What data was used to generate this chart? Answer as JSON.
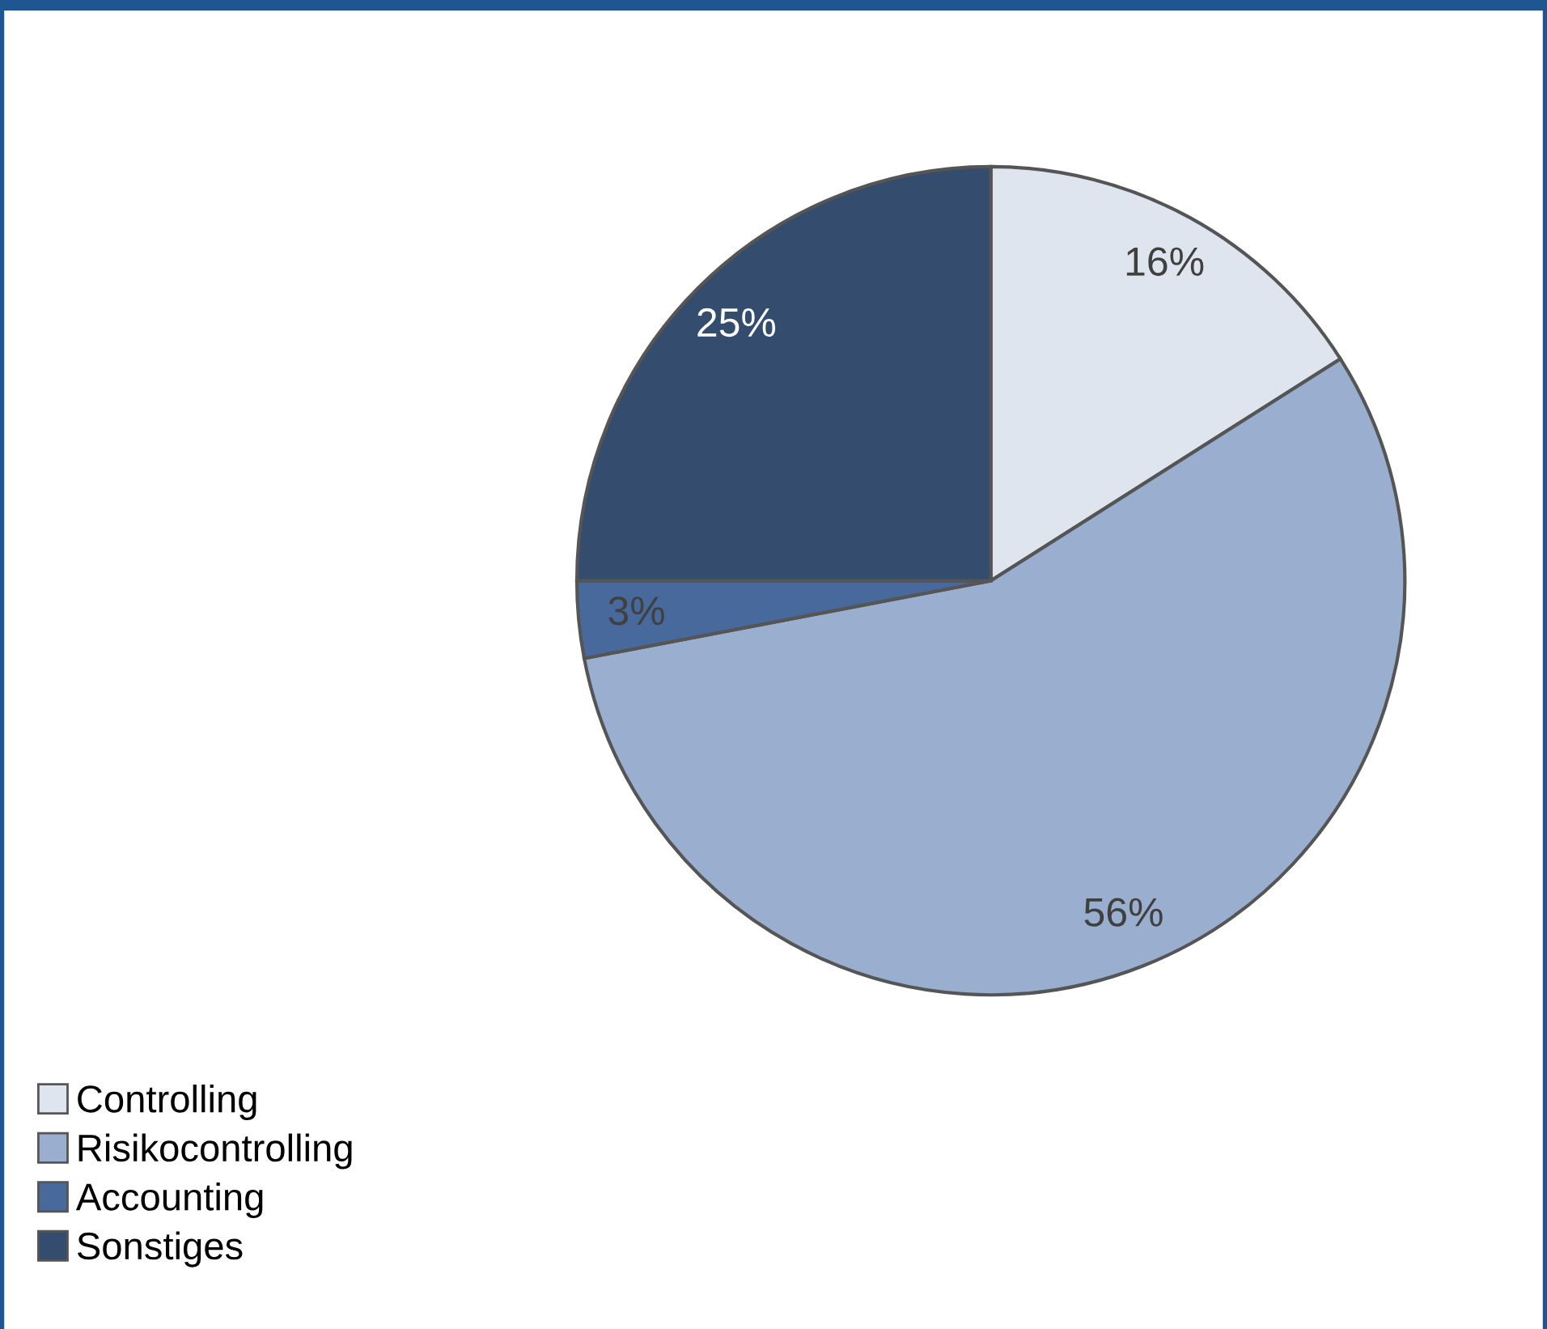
{
  "chart_data": {
    "type": "pie",
    "categories": [
      "Controlling",
      "Risikocontrolling",
      "Accounting",
      "Sonstiges"
    ],
    "values": [
      16,
      56,
      3,
      25
    ],
    "colors": [
      "#dfe5ef",
      "#9aafcf",
      "#47699b",
      "#344c6e"
    ],
    "value_labels": [
      "16%",
      "56%",
      "3%",
      "25%"
    ],
    "legend": "bottom left"
  }
}
